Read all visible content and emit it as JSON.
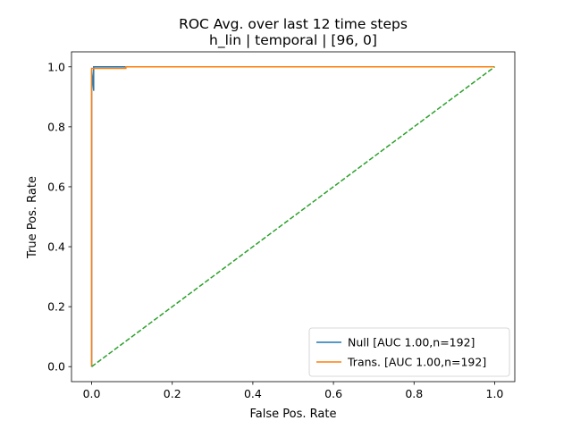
{
  "chart_data": {
    "type": "line",
    "title": "ROC Avg. over last 12 time steps",
    "subtitle": "h_lin | temporal | [96, 0]",
    "xlabel": "False Pos. Rate",
    "ylabel": "True Pos. Rate",
    "xlim": [
      -0.05,
      1.05
    ],
    "ylim": [
      -0.05,
      1.05
    ],
    "xticks": [
      "0.0",
      "0.2",
      "0.4",
      "0.6",
      "0.8",
      "1.0"
    ],
    "yticks": [
      "0.0",
      "0.2",
      "0.4",
      "0.6",
      "0.8",
      "1.0"
    ],
    "grid": false,
    "legend_position": "lower-right",
    "series": [
      {
        "name": "Null [AUC 1.00,n=192]",
        "color": "#1f77b4",
        "style": "solid",
        "x": [
          0.0,
          0.0,
          0.005,
          0.005,
          0.08,
          1.0
        ],
        "y": [
          0.0,
          0.99,
          0.92,
          1.0,
          1.0,
          1.0
        ]
      },
      {
        "name": "Trans. [AUC 1.00,n=192]",
        "color": "#ff7f0e",
        "style": "solid",
        "x": [
          0.0,
          0.0,
          0.005,
          0.005,
          0.085,
          0.085,
          1.0
        ],
        "y": [
          0.0,
          0.995,
          0.995,
          0.995,
          0.995,
          1.0,
          1.0
        ]
      },
      {
        "name": "",
        "color": "#2ca02c",
        "style": "dashed",
        "x": [
          0.0,
          1.0
        ],
        "y": [
          0.0,
          1.0
        ]
      }
    ]
  }
}
